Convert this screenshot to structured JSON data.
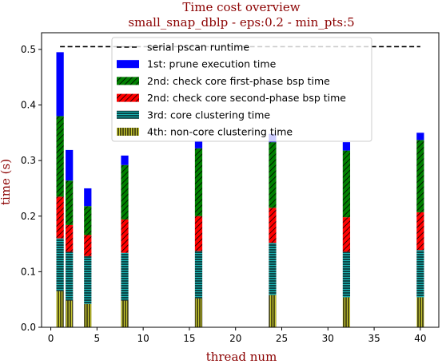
{
  "chart_data": {
    "type": "bar",
    "title": "Time cost overview",
    "subtitle": "small_snap_dblp - eps:0.2 - min_pts:5",
    "xlabel": "thread num",
    "ylabel": "time (s)",
    "xlim": [
      -1,
      42
    ],
    "ylim": [
      0,
      0.53
    ],
    "xticks": [
      0,
      5,
      10,
      15,
      20,
      25,
      30,
      35,
      40
    ],
    "yticks": [
      0.0,
      0.1,
      0.2,
      0.3,
      0.4,
      0.5
    ],
    "xtick_labels": [
      "0",
      "5",
      "10",
      "15",
      "20",
      "25",
      "30",
      "35",
      "40"
    ],
    "ytick_labels": [
      "0.0",
      "0.1",
      "0.2",
      "0.3",
      "0.4",
      "0.5"
    ],
    "legend_position": "upper center",
    "bar_width": 0.8,
    "x": [
      1,
      2,
      4,
      8,
      16,
      24,
      32,
      40
    ],
    "serial_line": {
      "name": "serial pscan runtime",
      "value": 0.505,
      "x_range": [
        1,
        40
      ],
      "color": "#000000",
      "style": "dashed"
    },
    "series": [
      {
        "name": "4th: non-core clustering time",
        "color": "#c8c832",
        "hatch": "vertical",
        "values": [
          0.065,
          0.048,
          0.042,
          0.048,
          0.052,
          0.058,
          0.054,
          0.054
        ]
      },
      {
        "name": "3rd: core clustering time",
        "color": "#1ab2b2",
        "hatch": "horizontal",
        "values": [
          0.095,
          0.088,
          0.086,
          0.086,
          0.085,
          0.094,
          0.082,
          0.085
        ]
      },
      {
        "name": "2nd: check core second-phase bsp time",
        "color": "#ff0000",
        "hatch": "diagonal",
        "values": [
          0.075,
          0.048,
          0.038,
          0.06,
          0.063,
          0.063,
          0.062,
          0.068
        ]
      },
      {
        "name": "2nd: check core first-phase bsp time",
        "color": "#008000",
        "hatch": "diagonal",
        "values": [
          0.145,
          0.08,
          0.052,
          0.098,
          0.122,
          0.118,
          0.12,
          0.13
        ]
      },
      {
        "name": "1st: prune execution time",
        "color": "#0000ff",
        "hatch": "none",
        "values": [
          0.115,
          0.055,
          0.032,
          0.017,
          0.013,
          0.015,
          0.015,
          0.013
        ]
      }
    ],
    "legend_order": [
      "serial pscan runtime",
      "1st: prune execution time",
      "2nd: check core first-phase bsp time",
      "2nd: check core second-phase bsp time",
      "3rd: core clustering time",
      "4th: non-core clustering time"
    ]
  }
}
